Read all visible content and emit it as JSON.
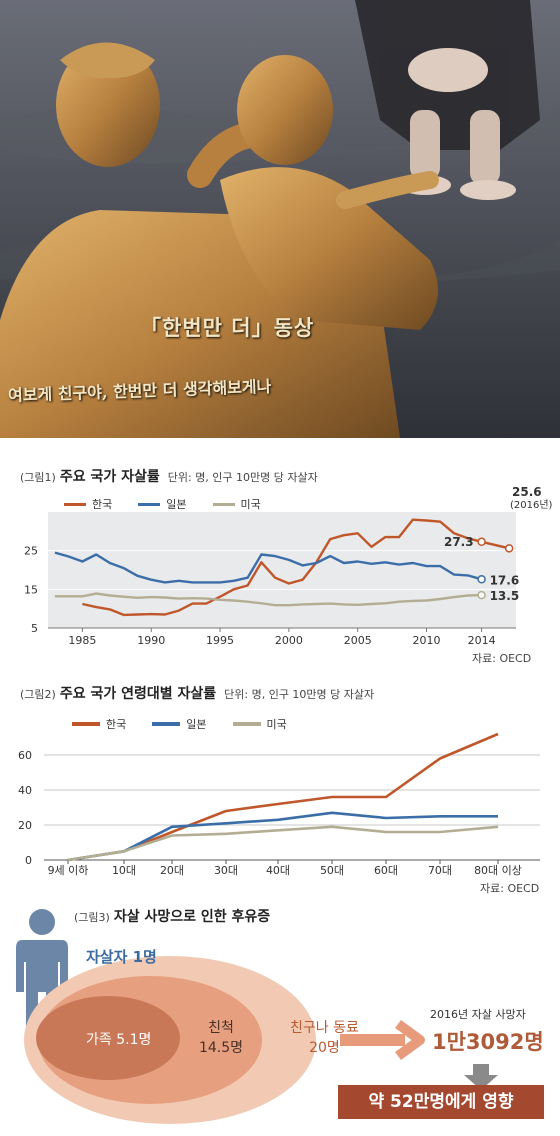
{
  "photo": {
    "caption_title": "「한번만 더」동상",
    "caption_sub": "여보게 친구야, 한번만 더 생각해보게나"
  },
  "colors": {
    "korea": "#c0572b",
    "japan": "#3b6ea8",
    "usa": "#b3ae93",
    "bg_panel": "#e9eaeb"
  },
  "figure1": {
    "tag": "(그림1)",
    "title": "주요 국가 자살률",
    "unit": "단위: 명, 인구 10만명 당 자살자",
    "source": "자료: OECD",
    "annotation_2016": "(2016년)",
    "end_labels": {
      "korea_2016": "25.6",
      "korea_2014": "27.3",
      "japan_2014": "17.6",
      "usa_2014": "13.5"
    }
  },
  "figure2": {
    "tag": "(그림2)",
    "title": "주요 국가 연령대별 자살률",
    "unit": "단위: 명, 인구 10만명 당 자살자",
    "source": "자료: OECD"
  },
  "figure3": {
    "tag": "(그림3)",
    "title": "자살 사망으로 인한 후유증",
    "person_label": "자살자 1명",
    "family": "가족 5.1명",
    "relatives_1": "친척",
    "relatives_2": "14.5명",
    "friends_1": "친구나 동료",
    "friends_2": "20명",
    "year_label": "2016년 자살 사망자",
    "deaths": "1만3092명",
    "impact": "약 52만명에게 영향"
  },
  "chart_data": [
    {
      "type": "line",
      "ylim": [
        5,
        35
      ],
      "yticks": [
        5,
        15,
        25
      ],
      "xticks": [
        "1985",
        "1990",
        "1995",
        "2000",
        "2005",
        "2010",
        "2014"
      ],
      "series": [
        {
          "name": "한국",
          "x": [
            1985,
            1986,
            1987,
            1988,
            1989,
            1990,
            1991,
            1992,
            1993,
            1994,
            1995,
            1996,
            1997,
            1998,
            1999,
            2000,
            2001,
            2002,
            2003,
            2004,
            2005,
            2006,
            2007,
            2008,
            2009,
            2010,
            2011,
            2012,
            2013,
            2014,
            2016
          ],
          "y": [
            11.2,
            10.4,
            9.8,
            8.4,
            8.5,
            8.6,
            8.5,
            9.5,
            11.3,
            11.3,
            13.1,
            15.0,
            16.0,
            22.0,
            18.0,
            16.5,
            17.5,
            22.0,
            28.0,
            29.0,
            29.5,
            26.0,
            28.5,
            28.5,
            33.0,
            32.8,
            32.5,
            29.5,
            28.2,
            27.3,
            25.6
          ]
        },
        {
          "name": "일본",
          "x": [
            1983,
            1984,
            1985,
            1986,
            1987,
            1988,
            1989,
            1990,
            1991,
            1992,
            1993,
            1994,
            1995,
            1996,
            1997,
            1998,
            1999,
            2000,
            2001,
            2002,
            2003,
            2004,
            2005,
            2006,
            2007,
            2008,
            2009,
            2010,
            2011,
            2012,
            2013,
            2014
          ],
          "y": [
            24.5,
            23.5,
            22.2,
            24.0,
            21.8,
            20.5,
            18.5,
            17.5,
            16.8,
            17.2,
            16.8,
            16.8,
            16.8,
            17.2,
            18.0,
            24.0,
            23.6,
            22.6,
            21.2,
            21.8,
            23.6,
            21.8,
            22.2,
            21.6,
            22.0,
            21.4,
            21.8,
            21.0,
            21.0,
            18.8,
            18.6,
            17.6
          ]
        },
        {
          "name": "미국",
          "x": [
            1983,
            1984,
            1985,
            1986,
            1987,
            1988,
            1989,
            1990,
            1991,
            1992,
            1993,
            1994,
            1995,
            1996,
            1997,
            1998,
            1999,
            2000,
            2001,
            2002,
            2003,
            2004,
            2005,
            2006,
            2007,
            2008,
            2009,
            2010,
            2011,
            2012,
            2013,
            2014
          ],
          "y": [
            13.2,
            13.2,
            13.2,
            13.9,
            13.4,
            13.1,
            12.8,
            13.0,
            12.9,
            12.6,
            12.7,
            12.6,
            12.3,
            12.1,
            11.8,
            11.4,
            10.9,
            10.9,
            11.1,
            11.2,
            11.3,
            11.1,
            11.0,
            11.2,
            11.4,
            11.8,
            12.0,
            12.1,
            12.5,
            13.0,
            13.4,
            13.5
          ]
        }
      ]
    },
    {
      "type": "line",
      "ylim": [
        0,
        80
      ],
      "yticks": [
        0,
        20,
        40,
        60
      ],
      "categories": [
        "9세 이하",
        "10대",
        "20대",
        "30대",
        "40대",
        "50대",
        "60대",
        "70대",
        "80대 이상"
      ],
      "series": [
        {
          "name": "한국",
          "values": [
            0,
            5,
            16,
            28,
            32,
            36,
            36,
            58,
            72
          ]
        },
        {
          "name": "일본",
          "values": [
            0,
            5,
            19,
            21,
            23,
            27,
            24,
            25,
            25
          ]
        },
        {
          "name": "미국",
          "values": [
            0,
            5,
            14,
            15,
            17,
            19,
            16,
            16,
            19
          ]
        }
      ]
    }
  ]
}
